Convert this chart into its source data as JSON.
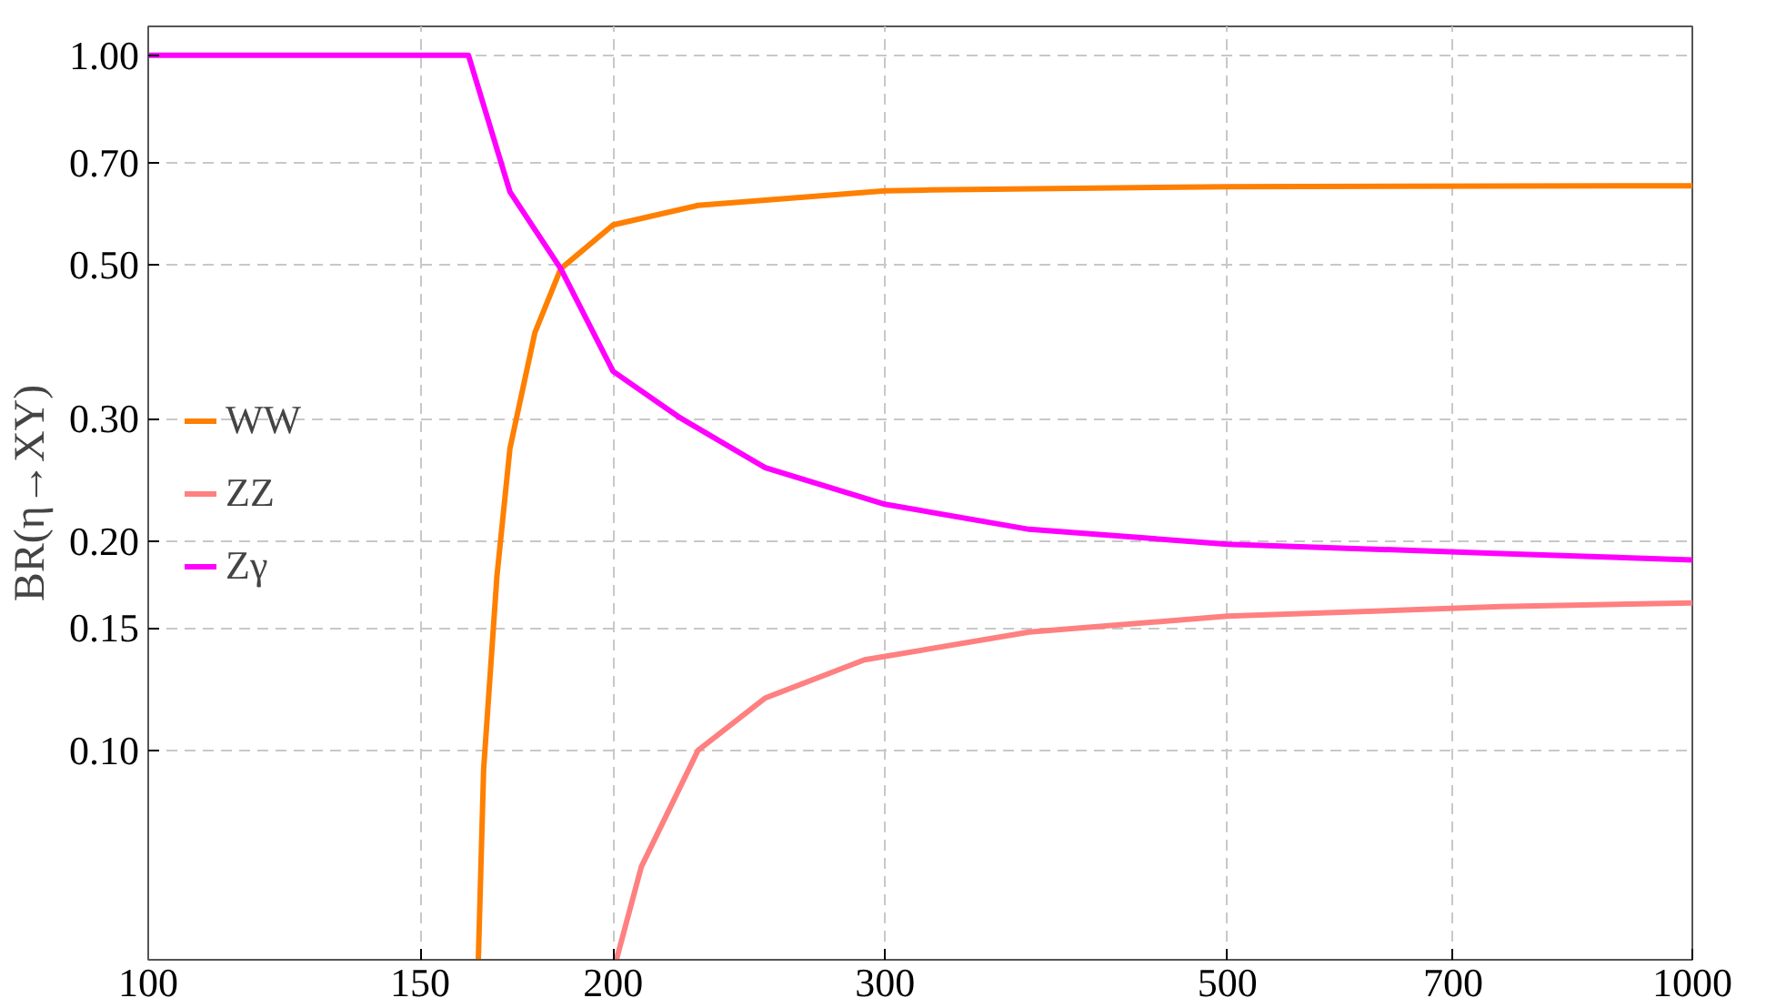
{
  "chart_data": {
    "type": "line",
    "ylabel": "BR(η→XY)",
    "log": "xy",
    "grid": true,
    "legend": "left",
    "line_style": "solid",
    "marker": "none",
    "xlim": [
      100,
      1000
    ],
    "ylim": [
      0.05,
      1.1
    ],
    "xticks": [
      100,
      150,
      200,
      300,
      500,
      700,
      1000
    ],
    "yticks": [
      {
        "value": 0.1,
        "label": "0.10"
      },
      {
        "value": 0.15,
        "label": "0.15"
      },
      {
        "value": 0.2,
        "label": "0.20"
      },
      {
        "value": 0.3,
        "label": "0.30"
      },
      {
        "value": 0.5,
        "label": "0.50"
      },
      {
        "value": 0.7,
        "label": "0.70"
      },
      {
        "value": 1,
        "label": "1.00"
      }
    ],
    "series": [
      {
        "name": "WW",
        "color": "#ff7f00",
        "x": [
          163.6,
          164.9,
          168.2,
          171.5,
          178,
          185,
          200,
          227,
          300,
          321,
          500,
          1000
        ],
        "values": [
          0.05,
          0.094,
          0.178,
          0.272,
          0.399,
          0.493,
          0.57,
          0.608,
          0.638,
          0.64,
          0.647,
          0.649
        ]
      },
      {
        "name": "ZZ",
        "color": "#ff8080",
        "x": [
          201,
          208.6,
          227,
          251,
          291,
          372,
          500,
          752,
          1000
        ],
        "values": [
          0.05,
          0.068,
          0.1,
          0.119,
          0.135,
          0.148,
          0.156,
          0.161,
          0.163
        ]
      },
      {
        "name": "Zγ",
        "color": "#ff00ff",
        "x": [
          100,
          161.2,
          171.5,
          185,
          200,
          221,
          251,
          300,
          372,
          500,
          752,
          1000
        ],
        "values": [
          1,
          1,
          0.636,
          0.493,
          0.351,
          0.301,
          0.255,
          0.226,
          0.208,
          0.198,
          0.192,
          0.188
        ]
      }
    ]
  }
}
